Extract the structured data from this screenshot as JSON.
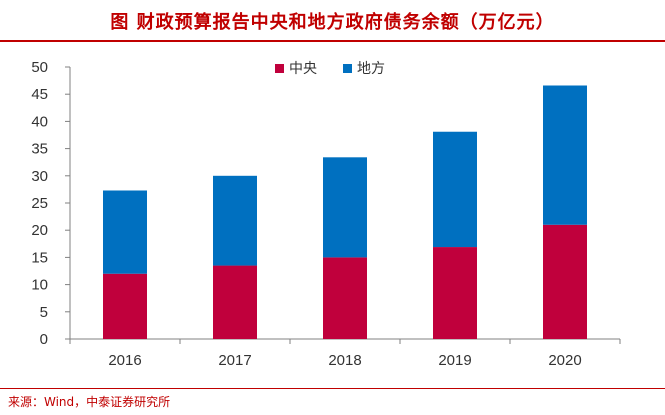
{
  "header": {
    "title": "图 财政预算报告中央和地方政府债务余额（万亿元）"
  },
  "footer": {
    "source": "来源：Wind，中泰证券研究所"
  },
  "chart_data": {
    "type": "bar",
    "stacked": true,
    "title": "图 财政预算报告中央和地方政府债务余额（万亿元）",
    "xlabel": "",
    "ylabel": "",
    "categories": [
      "2016",
      "2017",
      "2018",
      "2019",
      "2020"
    ],
    "series": [
      {
        "name": "中央",
        "color": "#c0003c",
        "values": [
          12.0,
          13.5,
          15.0,
          16.9,
          21.0
        ]
      },
      {
        "name": "地方",
        "color": "#0070c0",
        "values": [
          15.3,
          16.5,
          18.4,
          21.2,
          25.6
        ]
      }
    ],
    "ylim": [
      0,
      50
    ],
    "yticks": [
      0,
      5,
      10,
      15,
      20,
      25,
      30,
      35,
      40,
      45,
      50
    ],
    "grid": false,
    "legend_position": "top-center"
  }
}
